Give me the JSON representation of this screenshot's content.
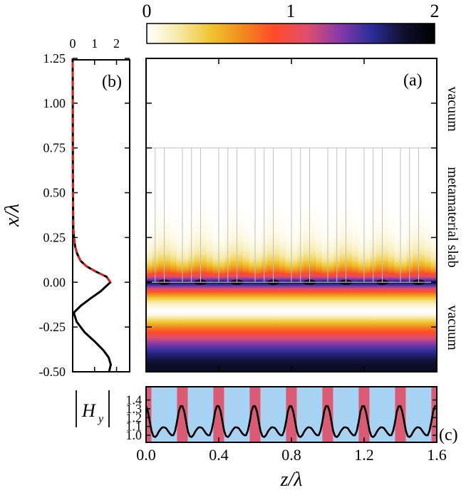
{
  "colorbar": {
    "ticks": [
      "0",
      "1",
      "2"
    ],
    "tick_values": [
      0,
      1,
      2
    ],
    "range": [
      0,
      2
    ],
    "stops": [
      "#ffffff",
      "#f6e9a6",
      "#efc52e",
      "#f08a1c",
      "#ff4a2a",
      "#e04f6c",
      "#8a3aa8",
      "#2d2e9c",
      "#101030",
      "#000000"
    ]
  },
  "chart_data": [
    {
      "id": "a",
      "type": "heatmap",
      "panel_label": "(a)",
      "title": "",
      "xlabel": "z/λ",
      "ylabel": "x/λ",
      "xlim": [
        0,
        1.6
      ],
      "ylim": [
        -0.5,
        1.25
      ],
      "x_ticks": [
        0.0,
        0.4,
        0.8,
        1.2,
        1.6
      ],
      "x_tick_labels": [
        "0.0",
        "0.4",
        "0.8",
        "1.2",
        "1.6"
      ],
      "y_ticks": [
        -0.5,
        -0.25,
        0.0,
        0.25,
        0.5,
        0.75,
        1.0,
        1.25
      ],
      "y_tick_labels": [
        "-0.50",
        "-0.25",
        "0.00",
        "0.25",
        "0.50",
        "0.75",
        "1.00",
        "1.25"
      ],
      "slab_range": [
        0,
        0.75
      ],
      "period": 0.2,
      "region_labels": [
        "vacuum",
        "metamaterial slab",
        "vacuum"
      ]
    },
    {
      "id": "b",
      "type": "line",
      "panel_label": "(b)",
      "xlim": [
        0,
        2.6
      ],
      "x_ticks": [
        0,
        1,
        2
      ],
      "x_tick_labels": [
        "0",
        "1",
        "2"
      ],
      "ylim": [
        -0.5,
        1.25
      ],
      "series": [
        {
          "name": "solid",
          "color": "#000000",
          "x": [
            1.66,
            1.74,
            1.64,
            1.4,
            1.0,
            0.55,
            0.18,
            0.05,
            0.38,
            0.82,
            1.28,
            1.72,
            1.55,
            1.05,
            0.62,
            0.36,
            0.2,
            0.11,
            0.06,
            0.03,
            0.02,
            0.01,
            0.0
          ],
          "y": [
            -0.5,
            -0.46,
            -0.42,
            -0.38,
            -0.33,
            -0.28,
            -0.22,
            -0.17,
            -0.13,
            -0.09,
            -0.05,
            0.0,
            0.03,
            0.06,
            0.09,
            0.12,
            0.16,
            0.2,
            0.25,
            0.3,
            0.4,
            0.6,
            1.25
          ]
        },
        {
          "name": "dashed",
          "color": "#e02020",
          "x": [
            1.72,
            1.55,
            1.05,
            0.62,
            0.36,
            0.2,
            0.11,
            0.06,
            0.03,
            0.02,
            0.01,
            0.0
          ],
          "y": [
            0.0,
            0.03,
            0.06,
            0.09,
            0.12,
            0.16,
            0.2,
            0.25,
            0.3,
            0.4,
            0.6,
            1.25
          ]
        }
      ]
    },
    {
      "id": "c",
      "type": "line",
      "panel_label": "(c)",
      "ylabel": "|H_y|",
      "xlim": [
        0,
        1.6
      ],
      "ylim": [
        0.92,
        1.55
      ],
      "y_ticks": [
        1.0,
        1.1,
        1.2,
        1.3,
        1.4
      ],
      "y_tick_labels": [
        "1.0",
        "1.1",
        "1.2",
        "1.3",
        "1.4"
      ],
      "period": 0.2,
      "band_colors": [
        "#da5b73",
        "#a5d3f5"
      ],
      "series": [
        {
          "name": "Hy",
          "color": "#000000",
          "x": [
            0.0,
            0.01,
            0.02,
            0.03,
            0.04,
            0.05,
            0.06,
            0.07,
            0.08,
            0.09,
            0.1,
            0.11,
            0.12,
            0.13,
            0.14,
            0.15,
            0.16,
            0.17,
            0.18,
            0.19,
            0.2
          ],
          "y": [
            1.33,
            1.27,
            1.16,
            1.05,
            0.99,
            0.98,
            1.0,
            1.04,
            1.07,
            1.09,
            1.09,
            1.08,
            1.05,
            1.02,
            1.0,
            1.0,
            1.05,
            1.15,
            1.27,
            1.33,
            1.33
          ]
        }
      ]
    }
  ]
}
